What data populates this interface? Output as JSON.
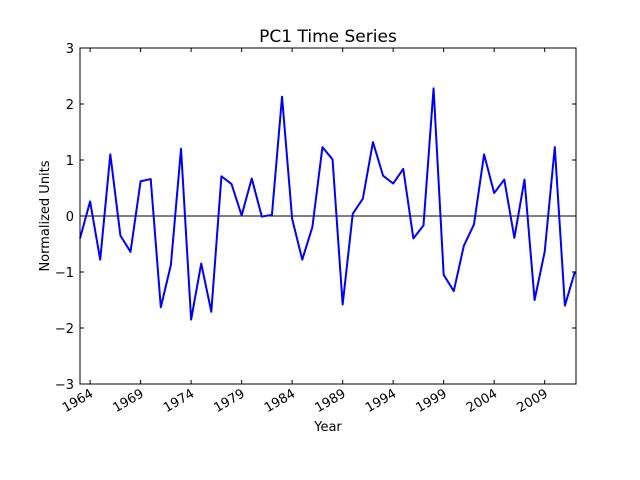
{
  "chart_data": {
    "type": "line",
    "title": "PC1 Time Series",
    "xlabel": "Year",
    "ylabel": "Normalized Units",
    "xlim": [
      1963,
      2012.1
    ],
    "ylim": [
      -3,
      3
    ],
    "x_ticks": [
      1964,
      1969,
      1974,
      1979,
      1984,
      1989,
      1994,
      1999,
      2004,
      2009
    ],
    "y_ticks": [
      -3,
      -2,
      -1,
      0,
      1,
      2,
      3
    ],
    "grid": false,
    "zero_line": true,
    "series": [
      {
        "color": "#0000ff",
        "x": [
          1963,
          1964,
          1965,
          1966,
          1967,
          1968,
          1969,
          1970,
          1971,
          1972,
          1973,
          1974,
          1975,
          1976,
          1977,
          1978,
          1979,
          1980,
          1981,
          1982,
          1983,
          1984,
          1985,
          1986,
          1987,
          1988,
          1989,
          1990,
          1991,
          1992,
          1993,
          1994,
          1995,
          1996,
          1997,
          1998,
          1999,
          2000,
          2001,
          2002,
          2003,
          2004,
          2005,
          2006,
          2007,
          2008,
          2009,
          2010,
          2011,
          2012
        ],
        "values": [
          -0.4,
          0.26,
          -0.78,
          1.1,
          -0.35,
          -0.64,
          0.62,
          0.66,
          -1.63,
          -0.87,
          1.2,
          -1.85,
          -0.85,
          -1.71,
          0.71,
          0.57,
          0.01,
          0.67,
          -0.01,
          0.02,
          2.13,
          -0.05,
          -0.78,
          -0.2,
          1.23,
          1.01,
          -1.58,
          0.04,
          0.31,
          1.32,
          0.72,
          0.58,
          0.84,
          -0.4,
          -0.17,
          2.28,
          -1.05,
          -1.34,
          -0.53,
          -0.15,
          1.1,
          0.41,
          0.65,
          -0.39,
          0.65,
          -1.5,
          -0.64,
          1.23,
          -1.6,
          -0.99
        ]
      }
    ]
  }
}
